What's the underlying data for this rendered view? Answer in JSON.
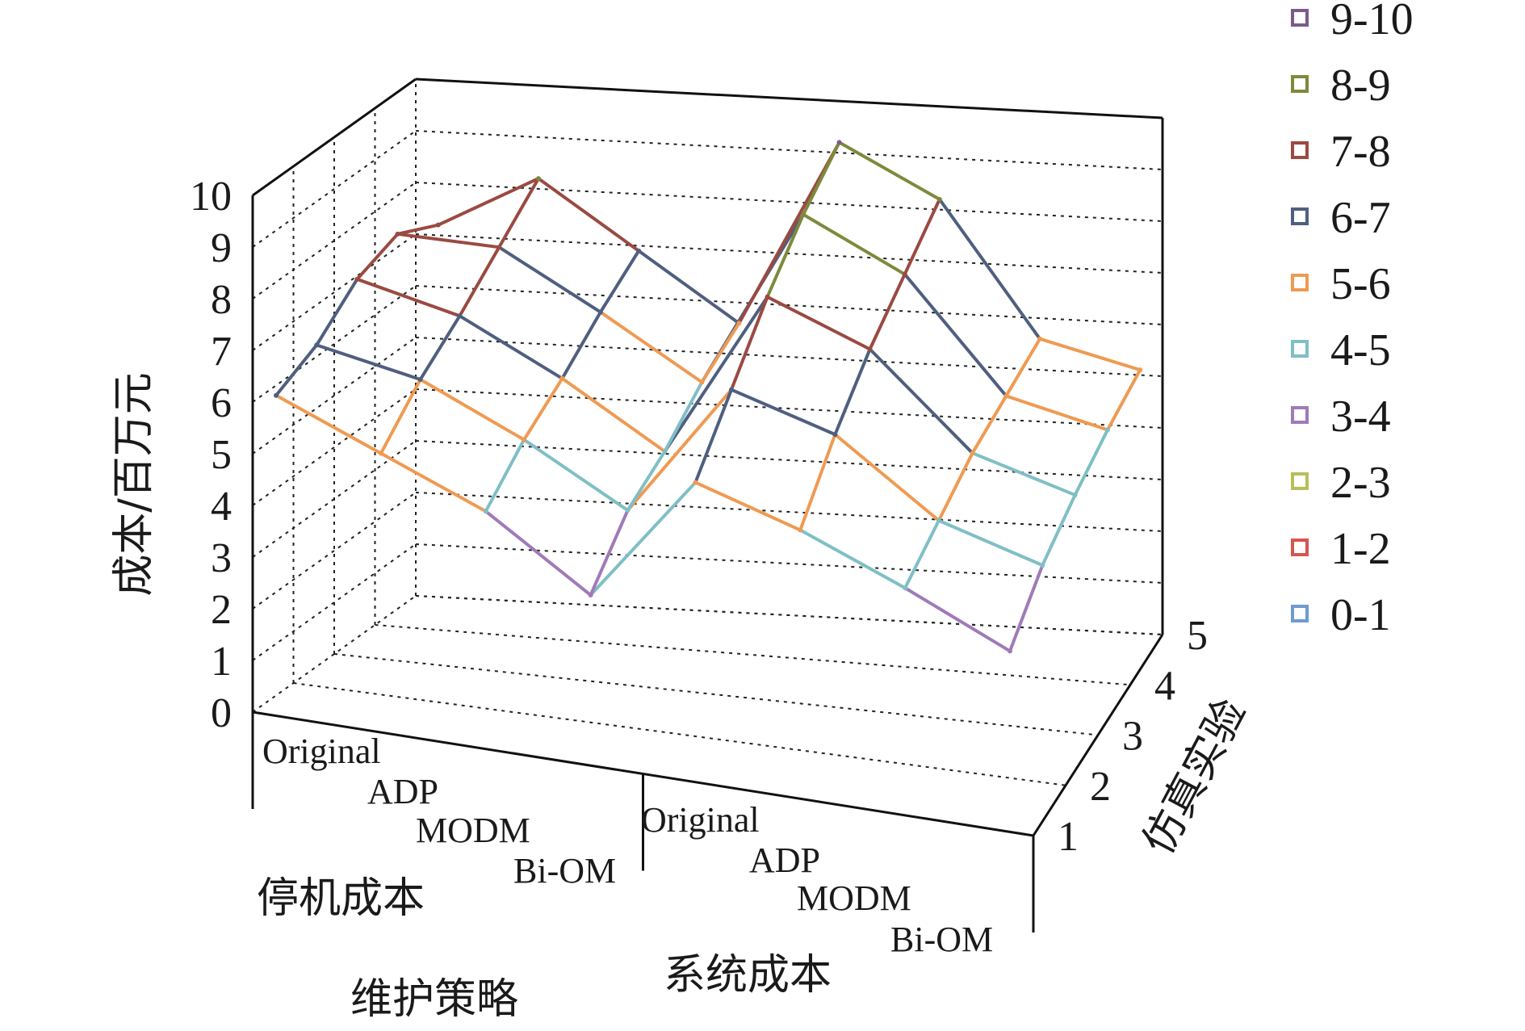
{
  "chart_data": {
    "type": "surface3d",
    "zlabel": "成本/百万元",
    "ylabel": "仿真实验",
    "xlabel": "维护策略",
    "zlim": [
      0,
      10
    ],
    "z_ticks": [
      "0",
      "1",
      "2",
      "3",
      "4",
      "5",
      "6",
      "7",
      "8",
      "9",
      "10"
    ],
    "y_ticks": [
      "1",
      "2",
      "3",
      "4",
      "5"
    ],
    "x_groups": [
      {
        "name": "停机成本",
        "categories": [
          "Original",
          "ADP",
          "MODM",
          "Bi-OM"
        ]
      },
      {
        "name": "系统成本",
        "categories": [
          "Original",
          "ADP",
          "MODM",
          "Bi-OM"
        ]
      }
    ],
    "grid": true,
    "legend_position": "right",
    "legend": [
      {
        "label": "9-10",
        "color": "#7a5c8c"
      },
      {
        "label": "8-9",
        "color": "#7d8a3c"
      },
      {
        "label": "7-8",
        "color": "#9a4a42"
      },
      {
        "label": "6-7",
        "color": "#4f5f7f"
      },
      {
        "label": "5-6",
        "color": "#ef9a52"
      },
      {
        "label": "4-5",
        "color": "#7fbfc5"
      },
      {
        "label": "3-4",
        "color": "#a07ab8"
      },
      {
        "label": "2-3",
        "color": "#b6bf5a"
      },
      {
        "label": "1-2",
        "color": "#d9534f"
      },
      {
        "label": "0-1",
        "color": "#6f9bd0"
      }
    ],
    "x_positions": [
      "停机成本-Original",
      "停机成本-ADP",
      "停机成本-MODM",
      "停机成本-Bi-OM",
      "系统成本-Original",
      "系统成本-ADP",
      "系统成本-MODM",
      "系统成本-Bi-OM"
    ],
    "z_values": [
      [
        6.2,
        6.6,
        7.3,
        7.6,
        7.2
      ],
      [
        5.4,
        6.2,
        6.8,
        7.5,
        8.2
      ],
      [
        4.6,
        5.3,
        5.8,
        6.4,
        6.9
      ],
      [
        3.3,
        4.2,
        4.6,
        5.2,
        5.6
      ],
      [
        5.8,
        6.8,
        7.8,
        8.6,
        9.2
      ],
      [
        5.2,
        6.2,
        7.0,
        7.6,
        8.2
      ],
      [
        4.4,
        4.8,
        5.2,
        5.4,
        5.6
      ],
      [
        3.5,
        4.2,
        4.6,
        4.9,
        5.1
      ]
    ]
  }
}
